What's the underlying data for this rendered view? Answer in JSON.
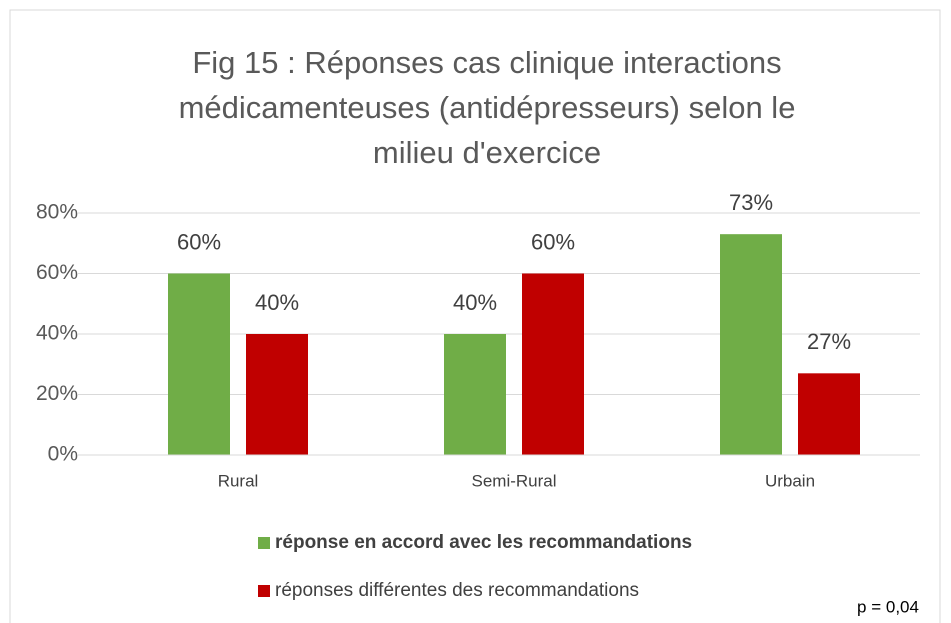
{
  "chart_data": {
    "type": "bar",
    "title": [
      "Fig 15 : Réponses cas clinique interactions",
      "médicamenteuses (antidépresseurs) selon le",
      "milieu d'exercice"
    ],
    "categories": [
      "Rural",
      "Semi-Rural",
      "Urbain"
    ],
    "series": [
      {
        "name": "réponse en accord avec les recommandations",
        "color": "#70ad47",
        "values": [
          60,
          40,
          73
        ],
        "value_labels": [
          "60%",
          "40%",
          "73%"
        ]
      },
      {
        "name": "réponses différentes des recommandations",
        "color": "#c00000",
        "values": [
          40,
          60,
          27
        ],
        "value_labels": [
          "40%",
          "60%",
          "27%"
        ]
      }
    ],
    "ylim": [
      0,
      80
    ],
    "yticks": [
      {
        "value": 0,
        "label": "0%"
      },
      {
        "value": 20,
        "label": "20%"
      },
      {
        "value": 40,
        "label": "40%"
      },
      {
        "value": 60,
        "label": "60%"
      },
      {
        "value": 80,
        "label": "80%"
      }
    ],
    "grid": true,
    "legend": "bottom",
    "annotation": "p = 0,04"
  }
}
